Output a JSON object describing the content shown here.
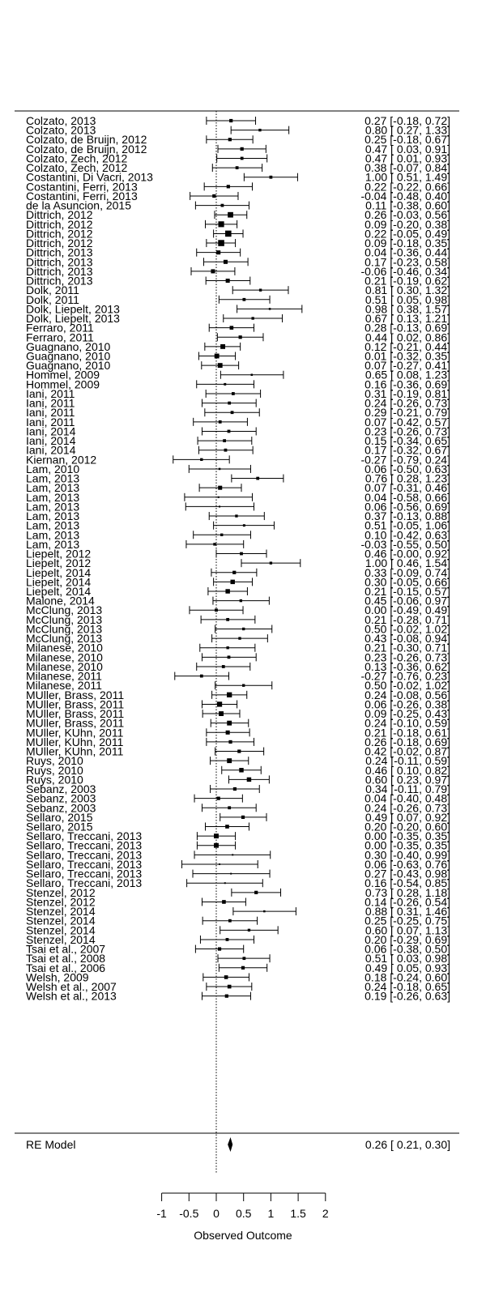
{
  "chart_data": {
    "type": "forest",
    "xlabel": "Observed Outcome",
    "xlim": [
      -1,
      2
    ],
    "xticks": [
      -1,
      -0.5,
      0,
      0.5,
      1,
      1.5,
      2
    ],
    "xtick_labels": [
      "-1",
      "-0.5",
      "0",
      "0.5",
      "1",
      "1.5",
      "2"
    ],
    "reference_line": 0,
    "studies": [
      {
        "label": "Colzato, 2013",
        "est": 0.27,
        "lo": -0.18,
        "hi": 0.72,
        "text": "0.27 [-0.18, 0.72]",
        "weight": 1.0
      },
      {
        "label": "Colzato, 2013",
        "est": 0.8,
        "lo": 0.27,
        "hi": 1.33,
        "text": "0.80 [ 0.27, 1.33]",
        "weight": 0.8
      },
      {
        "label": "Colzato, de Bruijn, 2012",
        "est": 0.25,
        "lo": -0.18,
        "hi": 0.67,
        "text": "0.25 [-0.18, 0.67]",
        "weight": 1.0
      },
      {
        "label": "Colzato, de Bruijn, 2012",
        "est": 0.47,
        "lo": 0.03,
        "hi": 0.91,
        "text": "0.47 [ 0.03, 0.91]",
        "weight": 1.0
      },
      {
        "label": "Colzato, Zech, 2012",
        "est": 0.47,
        "lo": 0.01,
        "hi": 0.93,
        "text": "0.47 [ 0.01, 0.93]",
        "weight": 0.9
      },
      {
        "label": "Colzato, Zech, 2012",
        "est": 0.38,
        "lo": -0.07,
        "hi": 0.84,
        "text": "0.38 [-0.07, 0.84]",
        "weight": 0.9
      },
      {
        "label": "Costantini, Di Vacri, 2013",
        "est": 1.0,
        "lo": 0.51,
        "hi": 1.49,
        "text": "1.00 [ 0.51, 1.49]",
        "weight": 0.9
      },
      {
        "label": "Costantini, Ferri, 2013",
        "est": 0.22,
        "lo": -0.22,
        "hi": 0.66,
        "text": "0.22 [-0.22, 0.66]",
        "weight": 1.0
      },
      {
        "label": "Costantini, Ferri, 2013",
        "est": -0.04,
        "lo": -0.48,
        "hi": 0.4,
        "text": "-0.04 [-0.48, 0.40]",
        "weight": 1.0
      },
      {
        "label": "de la Asuncion, 2015",
        "est": 0.11,
        "lo": -0.38,
        "hi": 0.6,
        "text": "0.11 [-0.38, 0.60]",
        "weight": 0.9
      },
      {
        "label": "Dittrich, 2012",
        "est": 0.26,
        "lo": -0.03,
        "hi": 0.56,
        "text": "0.26 [-0.03, 0.56]",
        "weight": 1.6
      },
      {
        "label": "Dittrich, 2012",
        "est": 0.09,
        "lo": -0.2,
        "hi": 0.38,
        "text": "0.09 [-0.20, 0.38]",
        "weight": 1.7
      },
      {
        "label": "Dittrich, 2012",
        "est": 0.22,
        "lo": -0.05,
        "hi": 0.49,
        "text": "0.22 [-0.05, 0.49]",
        "weight": 1.8
      },
      {
        "label": "Dittrich, 2012",
        "est": 0.09,
        "lo": -0.18,
        "hi": 0.35,
        "text": "0.09 [-0.18, 0.35]",
        "weight": 1.8
      },
      {
        "label": "Dittrich, 2013",
        "est": 0.04,
        "lo": -0.36,
        "hi": 0.44,
        "text": "0.04 [-0.36, 0.44]",
        "weight": 1.2
      },
      {
        "label": "Dittrich, 2013",
        "est": 0.17,
        "lo": -0.23,
        "hi": 0.58,
        "text": "0.17 [-0.23, 0.58]",
        "weight": 1.2
      },
      {
        "label": "Dittrich, 2013",
        "est": -0.06,
        "lo": -0.46,
        "hi": 0.34,
        "text": "-0.06 [-0.46, 0.34]",
        "weight": 1.2
      },
      {
        "label": "Dittrich, 2013",
        "est": 0.21,
        "lo": -0.19,
        "hi": 0.62,
        "text": "0.21 [-0.19, 0.62]",
        "weight": 1.2
      },
      {
        "label": "Dolk, 2011",
        "est": 0.81,
        "lo": 0.3,
        "hi": 1.32,
        "text": "0.81 [ 0.30, 1.32]",
        "weight": 0.8
      },
      {
        "label": "Dolk, 2011",
        "est": 0.51,
        "lo": 0.05,
        "hi": 0.98,
        "text": "0.51 [ 0.05, 0.98]",
        "weight": 0.9
      },
      {
        "label": "Dolk, Liepelt, 2013",
        "est": 0.98,
        "lo": 0.38,
        "hi": 1.57,
        "text": "0.98 [ 0.38, 1.57]",
        "weight": 0.6
      },
      {
        "label": "Dolk, Liepelt, 2013",
        "est": 0.67,
        "lo": 0.13,
        "hi": 1.21,
        "text": "0.67 [ 0.13, 1.21]",
        "weight": 0.8
      },
      {
        "label": "Ferraro, 2011",
        "est": 0.28,
        "lo": -0.13,
        "hi": 0.69,
        "text": "0.28 [-0.13, 0.69]",
        "weight": 1.1
      },
      {
        "label": "Ferraro, 2011",
        "est": 0.44,
        "lo": 0.02,
        "hi": 0.86,
        "text": "0.44 [ 0.02, 0.86]",
        "weight": 1.0
      },
      {
        "label": "Guagnano, 2010",
        "est": 0.12,
        "lo": -0.21,
        "hi": 0.44,
        "text": "0.12 [-0.21, 0.44]",
        "weight": 1.4
      },
      {
        "label": "Guagnano, 2010",
        "est": 0.01,
        "lo": -0.32,
        "hi": 0.35,
        "text": "0.01 [-0.32, 0.35]",
        "weight": 1.4
      },
      {
        "label": "Guagnano, 2010",
        "est": 0.07,
        "lo": -0.27,
        "hi": 0.41,
        "text": "0.07 [-0.27, 0.41]",
        "weight": 1.4
      },
      {
        "label": "Hommel, 2009",
        "est": 0.65,
        "lo": 0.08,
        "hi": 1.23,
        "text": "0.65 [ 0.08, 1.23]",
        "weight": 0.6
      },
      {
        "label": "Hommel, 2009",
        "est": 0.16,
        "lo": -0.36,
        "hi": 0.69,
        "text": "0.16 [-0.36, 0.69]",
        "weight": 0.7
      },
      {
        "label": "Iani, 2011",
        "est": 0.31,
        "lo": -0.19,
        "hi": 0.81,
        "text": "0.31 [-0.19, 0.81]",
        "weight": 0.9
      },
      {
        "label": "Iani, 2011",
        "est": 0.24,
        "lo": -0.26,
        "hi": 0.73,
        "text": "0.24 [-0.26, 0.73]",
        "weight": 0.9
      },
      {
        "label": "Iani, 2011",
        "est": 0.29,
        "lo": -0.21,
        "hi": 0.79,
        "text": "0.29 [-0.21, 0.79]",
        "weight": 0.9
      },
      {
        "label": "Iani, 2011",
        "est": 0.07,
        "lo": -0.42,
        "hi": 0.57,
        "text": "0.07 [-0.42, 0.57]",
        "weight": 0.9
      },
      {
        "label": "Iani, 2014",
        "est": 0.23,
        "lo": -0.26,
        "hi": 0.73,
        "text": "0.23 [-0.26, 0.73]",
        "weight": 0.9
      },
      {
        "label": "Iani, 2014",
        "est": 0.15,
        "lo": -0.34,
        "hi": 0.65,
        "text": "0.15 [-0.34, 0.65]",
        "weight": 0.9
      },
      {
        "label": "Iani, 2014",
        "est": 0.17,
        "lo": -0.32,
        "hi": 0.67,
        "text": "0.17 [-0.32, 0.67]",
        "weight": 0.9
      },
      {
        "label": "Kiernan, 2012",
        "est": -0.27,
        "lo": -0.79,
        "hi": 0.24,
        "text": "-0.27 [-0.79, 0.24]",
        "weight": 0.8
      },
      {
        "label": "Lam, 2010",
        "est": 0.06,
        "lo": -0.5,
        "hi": 0.63,
        "text": "0.06 [-0.50, 0.63]",
        "weight": 0.6
      },
      {
        "label": "Lam, 2013",
        "est": 0.76,
        "lo": 0.28,
        "hi": 1.23,
        "text": "0.76 [ 0.28, 1.23]",
        "weight": 0.9
      },
      {
        "label": "Lam, 2013",
        "est": 0.07,
        "lo": -0.31,
        "hi": 0.46,
        "text": "0.07 [-0.31, 0.46]",
        "weight": 1.2
      },
      {
        "label": "Lam, 2013",
        "est": 0.04,
        "lo": -0.58,
        "hi": 0.66,
        "text": "0.04 [-0.58, 0.66]",
        "weight": 0.5
      },
      {
        "label": "Lam, 2013",
        "est": 0.06,
        "lo": -0.56,
        "hi": 0.69,
        "text": "0.06 [-0.56, 0.69]",
        "weight": 0.5
      },
      {
        "label": "Lam, 2013",
        "est": 0.37,
        "lo": -0.13,
        "hi": 0.88,
        "text": "0.37 [-0.13, 0.88]",
        "weight": 0.8
      },
      {
        "label": "Lam, 2013",
        "est": 0.51,
        "lo": -0.05,
        "hi": 1.06,
        "text": "0.51 [-0.05, 1.06]",
        "weight": 0.7
      },
      {
        "label": "Lam, 2013",
        "est": 0.1,
        "lo": -0.42,
        "hi": 0.63,
        "text": "0.10 [-0.42, 0.63]",
        "weight": 0.8
      },
      {
        "label": "Lam, 2013",
        "est": -0.03,
        "lo": -0.55,
        "hi": 0.5,
        "text": "-0.03 [-0.55, 0.50]",
        "weight": 0.8
      },
      {
        "label": "Liepelt, 2012",
        "est": 0.46,
        "lo": -0.0,
        "hi": 0.92,
        "text": "0.46 [-0.00, 0.92]",
        "weight": 0.9
      },
      {
        "label": "Liepelt, 2012",
        "est": 1.0,
        "lo": 0.46,
        "hi": 1.54,
        "text": "1.00 [ 0.46, 1.54]",
        "weight": 0.8
      },
      {
        "label": "Liepelt, 2014",
        "est": 0.33,
        "lo": -0.09,
        "hi": 0.74,
        "text": "0.33 [-0.09, 0.74]",
        "weight": 1.0
      },
      {
        "label": "Liepelt, 2014",
        "est": 0.3,
        "lo": -0.05,
        "hi": 0.66,
        "text": "0.30 [-0.05, 0.66]",
        "weight": 1.3
      },
      {
        "label": "Liepelt, 2014",
        "est": 0.21,
        "lo": -0.15,
        "hi": 0.57,
        "text": "0.21 [-0.15, 0.57]",
        "weight": 1.3
      },
      {
        "label": "Malone, 2014",
        "est": 0.45,
        "lo": -0.06,
        "hi": 0.97,
        "text": "0.45 [-0.06, 0.97]",
        "weight": 0.8
      },
      {
        "label": "McClung, 2013",
        "est": 0.0,
        "lo": -0.49,
        "hi": 0.49,
        "text": "0.00 [-0.49, 0.49]",
        "weight": 0.9
      },
      {
        "label": "McClung, 2013",
        "est": 0.21,
        "lo": -0.28,
        "hi": 0.71,
        "text": "0.21 [-0.28, 0.71]",
        "weight": 0.9
      },
      {
        "label": "McClung, 2013",
        "est": 0.5,
        "lo": -0.02,
        "hi": 1.02,
        "text": "0.50 [-0.02, 1.02]",
        "weight": 0.8
      },
      {
        "label": "McClung, 2013",
        "est": 0.43,
        "lo": -0.08,
        "hi": 0.94,
        "text": "0.43 [-0.08, 0.94]",
        "weight": 0.8
      },
      {
        "label": "Milanese, 2010",
        "est": 0.21,
        "lo": -0.3,
        "hi": 0.71,
        "text": "0.21 [-0.30, 0.71]",
        "weight": 0.8
      },
      {
        "label": "Milanese, 2010",
        "est": 0.23,
        "lo": -0.26,
        "hi": 0.73,
        "text": "0.23 [-0.26, 0.73]",
        "weight": 0.9
      },
      {
        "label": "Milanese, 2010",
        "est": 0.13,
        "lo": -0.36,
        "hi": 0.62,
        "text": "0.13 [-0.36, 0.62]",
        "weight": 0.9
      },
      {
        "label": "Milanese, 2011",
        "est": -0.27,
        "lo": -0.76,
        "hi": 0.23,
        "text": "-0.27 [-0.76, 0.23]",
        "weight": 0.9
      },
      {
        "label": "Milanese, 2011",
        "est": 0.5,
        "lo": -0.02,
        "hi": 1.02,
        "text": "0.50 [-0.02, 1.02]",
        "weight": 0.8
      },
      {
        "label": "MUller, Brass, 2011",
        "est": 0.24,
        "lo": -0.08,
        "hi": 0.56,
        "text": "0.24 [-0.08, 0.56]",
        "weight": 1.5
      },
      {
        "label": "MUller, Brass, 2011",
        "est": 0.06,
        "lo": -0.26,
        "hi": 0.38,
        "text": "0.06 [-0.26, 0.38]",
        "weight": 1.5
      },
      {
        "label": "MUller, Brass, 2011",
        "est": 0.09,
        "lo": -0.25,
        "hi": 0.43,
        "text": "0.09 [-0.25, 0.43]",
        "weight": 1.4
      },
      {
        "label": "MUller, Brass, 2011",
        "est": 0.24,
        "lo": -0.1,
        "hi": 0.59,
        "text": "0.24 [-0.10, 0.59]",
        "weight": 1.4
      },
      {
        "label": "MUller, KUhn, 2011",
        "est": 0.21,
        "lo": -0.18,
        "hi": 0.61,
        "text": "0.21 [-0.18, 0.61]",
        "weight": 1.2
      },
      {
        "label": "MUller, KUhn, 2011",
        "est": 0.26,
        "lo": -0.18,
        "hi": 0.69,
        "text": "0.26 [-0.18, 0.69]",
        "weight": 1.0
      },
      {
        "label": "MUller, KUhn, 2011",
        "est": 0.42,
        "lo": -0.02,
        "hi": 0.87,
        "text": "0.42 [-0.02, 0.87]",
        "weight": 1.0
      },
      {
        "label": "Ruys, 2010",
        "est": 0.24,
        "lo": -0.11,
        "hi": 0.59,
        "text": "0.24 [-0.11, 0.59]",
        "weight": 1.4
      },
      {
        "label": "Ruys, 2010",
        "est": 0.46,
        "lo": 0.1,
        "hi": 0.82,
        "text": "0.46 [ 0.10, 0.82]",
        "weight": 1.3
      },
      {
        "label": "Ruys, 2010",
        "est": 0.6,
        "lo": 0.23,
        "hi": 0.97,
        "text": "0.60 [ 0.23, 0.97]",
        "weight": 1.3
      },
      {
        "label": "Sebanz, 2003",
        "est": 0.34,
        "lo": -0.11,
        "hi": 0.79,
        "text": "0.34 [-0.11, 0.79]",
        "weight": 1.0
      },
      {
        "label": "Sebanz, 2003",
        "est": 0.04,
        "lo": -0.4,
        "hi": 0.48,
        "text": "0.04 [-0.40, 0.48]",
        "weight": 1.0
      },
      {
        "label": "Sebanz, 2003",
        "est": 0.24,
        "lo": -0.26,
        "hi": 0.73,
        "text": "0.24 [-0.26, 0.73]",
        "weight": 0.9
      },
      {
        "label": "Sellaro, 2015",
        "est": 0.49,
        "lo": 0.07,
        "hi": 0.92,
        "text": "0.49 [ 0.07, 0.92]",
        "weight": 1.0
      },
      {
        "label": "Sellaro, 2015",
        "est": 0.2,
        "lo": -0.2,
        "hi": 0.6,
        "text": "0.20 [-0.20, 0.60]",
        "weight": 1.1
      },
      {
        "label": "Sellaro, Treccani, 2013",
        "est": 0.0,
        "lo": -0.35,
        "hi": 0.35,
        "text": "0.00 [-0.35, 0.35]",
        "weight": 1.4
      },
      {
        "label": "Sellaro, Treccani, 2013",
        "est": 0.0,
        "lo": -0.35,
        "hi": 0.35,
        "text": "0.00 [-0.35, 0.35]",
        "weight": 1.4
      },
      {
        "label": "Sellaro, Treccani, 2013",
        "est": 0.3,
        "lo": -0.4,
        "hi": 0.99,
        "text": "0.30 [-0.40, 0.99]",
        "weight": 0.4
      },
      {
        "label": "Sellaro, Treccani, 2013",
        "est": 0.06,
        "lo": -0.63,
        "hi": 0.76,
        "text": "0.06 [-0.63, 0.76]",
        "weight": 0.4
      },
      {
        "label": "Sellaro, Treccani, 2013",
        "est": 0.27,
        "lo": -0.43,
        "hi": 0.98,
        "text": "0.27 [-0.43, 0.98]",
        "weight": 0.4
      },
      {
        "label": "Sellaro, Treccani, 2013",
        "est": 0.16,
        "lo": -0.54,
        "hi": 0.85,
        "text": "0.16 [-0.54, 0.85]",
        "weight": 0.4
      },
      {
        "label": "Stenzel, 2012",
        "est": 0.73,
        "lo": 0.28,
        "hi": 1.18,
        "text": "0.73 [ 0.28, 1.18]",
        "weight": 1.0
      },
      {
        "label": "Stenzel, 2012",
        "est": 0.14,
        "lo": -0.26,
        "hi": 0.54,
        "text": "0.14 [-0.26, 0.54]",
        "weight": 1.1
      },
      {
        "label": "Stenzel, 2014",
        "est": 0.88,
        "lo": 0.31,
        "hi": 1.46,
        "text": "0.88 [ 0.31, 1.46]",
        "weight": 0.6
      },
      {
        "label": "Stenzel, 2014",
        "est": 0.25,
        "lo": -0.25,
        "hi": 0.75,
        "text": "0.25 [-0.25, 0.75]",
        "weight": 0.9
      },
      {
        "label": "Stenzel, 2014",
        "est": 0.6,
        "lo": 0.07,
        "hi": 1.13,
        "text": "0.60 [ 0.07, 1.13]",
        "weight": 0.8
      },
      {
        "label": "Stenzel, 2014",
        "est": 0.2,
        "lo": -0.29,
        "hi": 0.69,
        "text": "0.20 [-0.29, 0.69]",
        "weight": 0.9
      },
      {
        "label": "Tsai et al., 2007",
        "est": 0.06,
        "lo": -0.38,
        "hi": 0.5,
        "text": "0.06 [-0.38, 0.50]",
        "weight": 1.0
      },
      {
        "label": "Tsai et al., 2008",
        "est": 0.51,
        "lo": 0.03,
        "hi": 0.98,
        "text": "0.51 [ 0.03, 0.98]",
        "weight": 0.9
      },
      {
        "label": "Tsai et al., 2006",
        "est": 0.49,
        "lo": 0.05,
        "hi": 0.93,
        "text": "0.49 [ 0.05, 0.93]",
        "weight": 1.0
      },
      {
        "label": "Welsh, 2009",
        "est": 0.18,
        "lo": -0.24,
        "hi": 0.6,
        "text": "0.18 [-0.24, 0.60]",
        "weight": 1.1
      },
      {
        "label": "Welsh et al., 2007",
        "est": 0.24,
        "lo": -0.18,
        "hi": 0.65,
        "text": "0.24 [-0.18, 0.65]",
        "weight": 1.1
      },
      {
        "label": "Welsh et al., 2013",
        "est": 0.19,
        "lo": -0.26,
        "hi": 0.63,
        "text": "0.19 [-0.26, 0.63]",
        "weight": 1.0
      }
    ],
    "summary": {
      "label": "RE Model",
      "est": 0.26,
      "lo": 0.21,
      "hi": 0.3,
      "text": "0.26 [ 0.21, 0.30]"
    }
  }
}
